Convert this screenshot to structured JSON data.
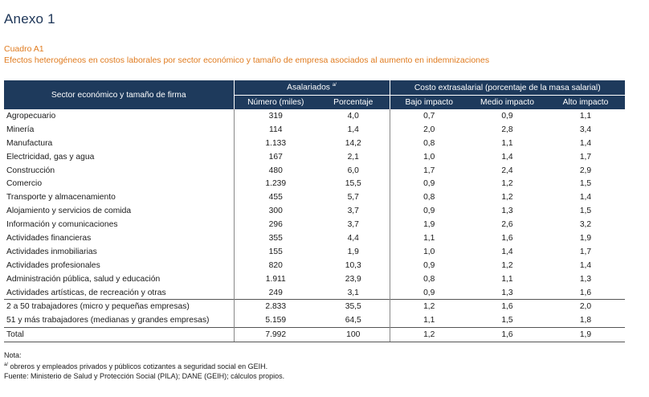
{
  "heading": "Anexo 1",
  "cuadro": "Cuadro A1",
  "subtitle": "Efectos heterogéneos en costos laborales por sector económico y tamaño de empresa asociados al aumento en indemnizaciones",
  "table": {
    "row_header": "Sector económico y tamaño de firma",
    "group1": "Asalariados",
    "group1_sup": "a/",
    "group2": "Costo extrasalarial (porcentaje de la masa salarial)",
    "columns": [
      "Número (miles)",
      "Porcentaje",
      "Bajo impacto",
      "Medio impacto",
      "Alto impacto"
    ],
    "sectors": [
      [
        "Agropecuario",
        "319",
        "4,0",
        "0,7",
        "0,9",
        "1,1"
      ],
      [
        "Minería",
        "114",
        "1,4",
        "2,0",
        "2,8",
        "3,4"
      ],
      [
        "Manufactura",
        "1.133",
        "14,2",
        "0,8",
        "1,1",
        "1,4"
      ],
      [
        "Electricidad, gas y agua",
        "167",
        "2,1",
        "1,0",
        "1,4",
        "1,7"
      ],
      [
        "Construcción",
        "480",
        "6,0",
        "1,7",
        "2,4",
        "2,9"
      ],
      [
        "Comercio",
        "1.239",
        "15,5",
        "0,9",
        "1,2",
        "1,5"
      ],
      [
        "Transporte y almacenamiento",
        "455",
        "5,7",
        "0,8",
        "1,2",
        "1,4"
      ],
      [
        "Alojamiento y servicios de comida",
        "300",
        "3,7",
        "0,9",
        "1,3",
        "1,5"
      ],
      [
        "Información y comunicaciones",
        "296",
        "3,7",
        "1,9",
        "2,6",
        "3,2"
      ],
      [
        "Actividades financieras",
        "355",
        "4,4",
        "1,1",
        "1,6",
        "1,9"
      ],
      [
        "Actividades inmobiliarias",
        "155",
        "1,9",
        "1,0",
        "1,4",
        "1,7"
      ],
      [
        "Actividades profesionales",
        "820",
        "10,3",
        "0,9",
        "1,2",
        "1,4"
      ],
      [
        "Administración pública, salud y educación",
        "1.911",
        "23,9",
        "0,8",
        "1,1",
        "1,3"
      ],
      [
        "Actividades artísticas, de recreación y otras",
        "249",
        "3,1",
        "0,9",
        "1,3",
        "1,6"
      ]
    ],
    "sizes": [
      [
        "2 a 50 trabajadores (micro y pequeñas empresas)",
        "2.833",
        "35,5",
        "1,2",
        "1,6",
        "2,0"
      ],
      [
        "51 y más trabajadores (medianas y grandes empresas)",
        "5.159",
        "64,5",
        "1,1",
        "1,5",
        "1,8"
      ]
    ],
    "total": [
      "Total",
      "7.992",
      "100",
      "1,2",
      "1,6",
      "1,9"
    ]
  },
  "notes": {
    "label": "Nota:",
    "sup": "a/",
    "note1": " obreros y empleados privados y públicos cotizantes a seguridad social en GEIH.",
    "source": "Fuente: Ministerio de Salud y Protección Social (PILA); DANE (GEIH); cálculos propios."
  },
  "colors": {
    "header_bg": "#1e3a5c",
    "accent": "#e07b1f",
    "heading": "#1d3557"
  }
}
